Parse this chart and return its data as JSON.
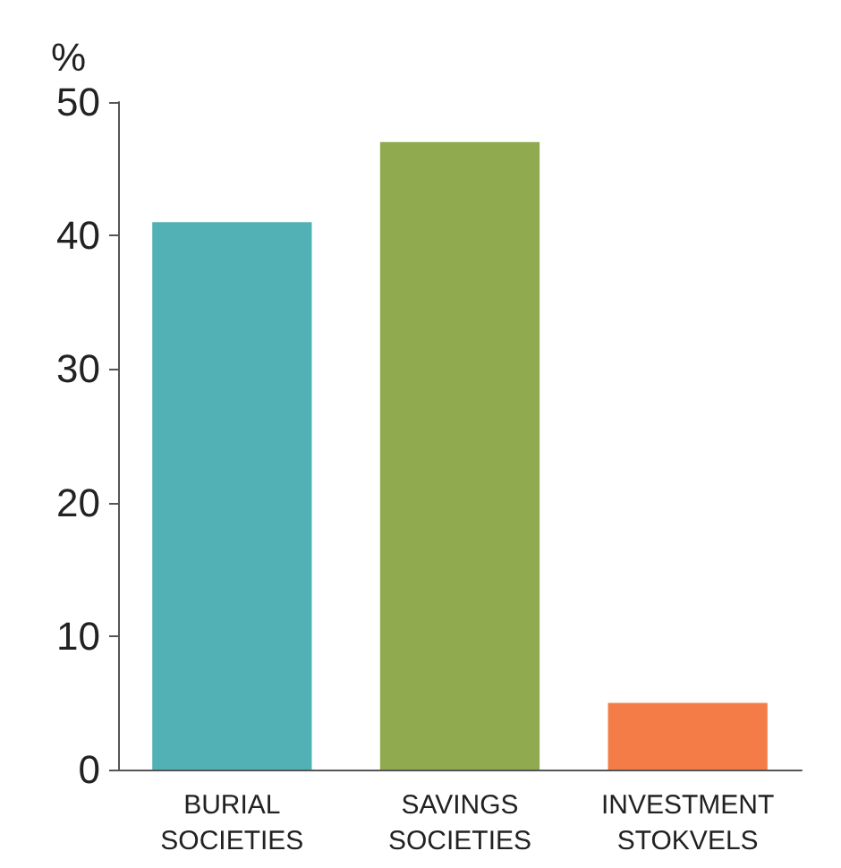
{
  "chart_data": {
    "type": "bar",
    "ylabel": "%",
    "categories": [
      "BURIAL\nSOCIETIES",
      "SAVINGS\nSOCIETIES",
      "INVESTMENT\nSTOKVELS"
    ],
    "values": [
      41,
      47,
      5
    ],
    "colors": [
      "#52b1b5",
      "#8faa4f",
      "#f47d47"
    ],
    "ylim": [
      0,
      50
    ],
    "yticks": [
      0,
      10,
      20,
      30,
      40,
      50
    ],
    "grid": false
  }
}
